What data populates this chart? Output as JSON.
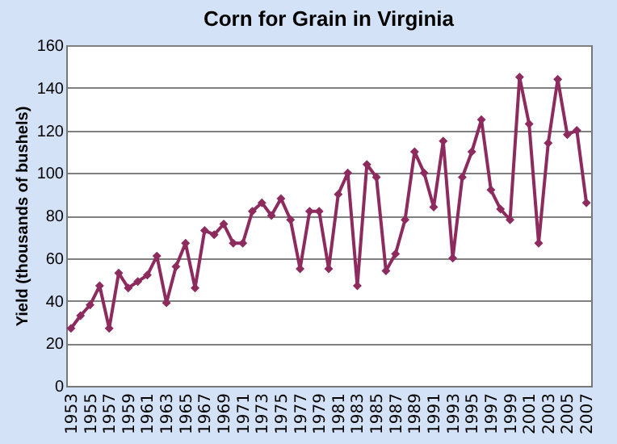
{
  "chart_data": {
    "type": "line",
    "title": "Corn for Grain in Virginia",
    "ylabel": "Yield (thousands of bushels)",
    "categories": [
      "1953",
      null,
      "1955",
      null,
      "1957",
      null,
      "1959",
      null,
      "1961",
      null,
      "1963",
      null,
      "1965",
      null,
      "1967",
      null,
      "1969",
      null,
      "1971",
      null,
      "1973",
      null,
      "1975",
      null,
      "1977",
      null,
      "1979",
      null,
      "1981",
      null,
      "1983",
      null,
      "1985",
      null,
      "1987",
      null,
      "1989",
      null,
      "1991",
      null,
      "1993",
      null,
      "1995",
      null,
      "1997",
      null,
      "1999",
      null,
      "2001",
      null,
      "2003",
      null,
      "2005",
      null,
      "2007"
    ],
    "series": [
      {
        "color": "#8e2b5e",
        "values": [
          27,
          33,
          38,
          47,
          27,
          53,
          46,
          49,
          52,
          61,
          39,
          56,
          67,
          46,
          73,
          71,
          76,
          67,
          67,
          82,
          86,
          80,
          88,
          78,
          55,
          82,
          82,
          55,
          90,
          100,
          47,
          104,
          98,
          54,
          62,
          78,
          110,
          100,
          84,
          115,
          60,
          98,
          110,
          125,
          92,
          83,
          78,
          145,
          123,
          67,
          114,
          144,
          118,
          120,
          86
        ]
      }
    ],
    "ylim": [
      0,
      160
    ],
    "yticks": [
      0,
      20,
      40,
      60,
      80,
      100,
      120,
      140,
      160
    ],
    "grid": "y",
    "marker": "diamond",
    "line_style": "solid",
    "legend": false
  }
}
